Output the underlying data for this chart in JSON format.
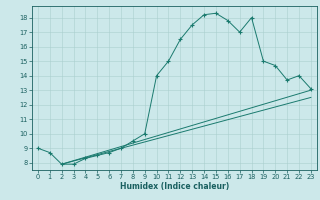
{
  "title": "",
  "xlabel": "Humidex (Indice chaleur)",
  "bg_color": "#cce8ea",
  "line_color": "#1a7a6e",
  "grid_color": "#aacfcf",
  "axis_color": "#1a6060",
  "tick_color": "#1a6060",
  "xlim": [
    -0.5,
    23.5
  ],
  "ylim": [
    7.5,
    18.8
  ],
  "xticks": [
    0,
    1,
    2,
    3,
    4,
    5,
    6,
    7,
    8,
    9,
    10,
    11,
    12,
    13,
    14,
    15,
    16,
    17,
    18,
    19,
    20,
    21,
    22,
    23
  ],
  "yticks": [
    8,
    9,
    10,
    11,
    12,
    13,
    14,
    15,
    16,
    17,
    18
  ],
  "curve1_x": [
    0,
    1,
    2,
    3,
    4,
    5,
    6,
    7,
    8,
    9,
    10,
    11,
    12,
    13,
    14,
    15,
    16,
    17,
    18,
    19,
    20,
    21,
    22,
    23
  ],
  "curve1_y": [
    9.0,
    8.7,
    7.9,
    7.9,
    8.3,
    8.5,
    8.7,
    9.0,
    9.5,
    10.0,
    14.0,
    15.0,
    16.5,
    17.5,
    18.2,
    18.3,
    17.8,
    17.0,
    18.0,
    15.0,
    14.7,
    13.7,
    14.0,
    13.1
  ],
  "curve2_x": [
    2,
    23
  ],
  "curve2_y": [
    7.9,
    13.0
  ],
  "curve3_x": [
    2,
    23
  ],
  "curve3_y": [
    7.9,
    12.5
  ],
  "xlabel_fontsize": 5.5,
  "tick_fontsize": 4.8,
  "linewidth": 0.7,
  "marker_size": 3.0,
  "marker_lw": 0.8
}
